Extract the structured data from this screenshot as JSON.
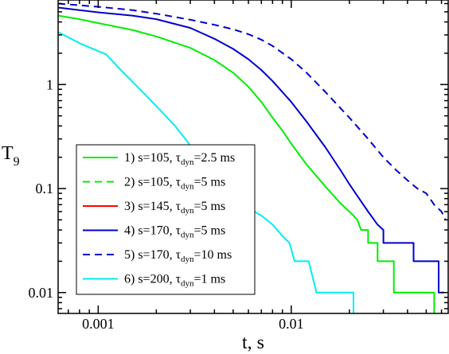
{
  "chart_data": {
    "type": "line",
    "xlabel": "t, s",
    "ylabel_main": "T",
    "ylabel_sub": "9",
    "x_scale": "log",
    "y_scale": "log",
    "xlim": [
      0.00062,
      0.065
    ],
    "ylim": [
      0.0063,
      6.5
    ],
    "x_ticks": [
      {
        "value": 0.001,
        "label": "0.001"
      },
      {
        "value": 0.01,
        "label": "0.01"
      }
    ],
    "y_ticks": [
      {
        "value": 0.01,
        "label": "0.01"
      },
      {
        "value": 0.1,
        "label": "0.1"
      },
      {
        "value": 1,
        "label": "1"
      }
    ],
    "legend_position": "lower-left",
    "grid": false,
    "series": [
      {
        "name": {
          "pre": "1) s=105, ",
          "tau": "τ",
          "sub": "dyn",
          "post": "=2.5 ms"
        },
        "color": "#00ee00",
        "dash": "solid",
        "points": [
          [
            0.00062,
            4.6
          ],
          [
            0.0008,
            4.25
          ],
          [
            0.001,
            3.9
          ],
          [
            0.0015,
            3.35
          ],
          [
            0.002,
            2.9
          ],
          [
            0.003,
            2.25
          ],
          [
            0.004,
            1.72
          ],
          [
            0.005,
            1.3
          ],
          [
            0.006,
            0.95
          ],
          [
            0.007,
            0.68
          ],
          [
            0.008,
            0.48
          ],
          [
            0.009,
            0.36
          ],
          [
            0.01,
            0.27
          ],
          [
            0.012,
            0.17
          ],
          [
            0.015,
            0.105
          ],
          [
            0.018,
            0.072
          ],
          [
            0.021,
            0.055
          ],
          [
            0.022,
            0.05
          ],
          [
            0.023,
            0.04
          ],
          [
            0.025,
            0.04
          ],
          [
            0.025,
            0.03
          ],
          [
            0.028,
            0.03
          ],
          [
            0.028,
            0.02
          ],
          [
            0.034,
            0.02
          ],
          [
            0.034,
            0.01
          ],
          [
            0.055,
            0.01
          ],
          [
            0.055,
            0.0063
          ]
        ]
      },
      {
        "name": {
          "pre": "2) s=105, ",
          "tau": "τ",
          "sub": "dyn",
          "post": "=5 ms"
        },
        "color": "#00ee00",
        "dash": "dashed",
        "points": []
      },
      {
        "name": {
          "pre": "3) s=145, ",
          "tau": "τ",
          "sub": "dyn",
          "post": "=5 ms"
        },
        "color": "#ff0000",
        "dash": "solid",
        "points": []
      },
      {
        "name": {
          "pre": "4) s=170, ",
          "tau": "τ",
          "sub": "dyn",
          "post": "=5 ms"
        },
        "color": "#0000cc",
        "dash": "solid",
        "points": [
          [
            0.00062,
            5.5
          ],
          [
            0.0008,
            5.2
          ],
          [
            0.001,
            4.95
          ],
          [
            0.0015,
            4.6
          ],
          [
            0.002,
            4.25
          ],
          [
            0.003,
            3.5
          ],
          [
            0.004,
            2.75
          ],
          [
            0.005,
            2.2
          ],
          [
            0.006,
            1.75
          ],
          [
            0.007,
            1.38
          ],
          [
            0.008,
            1.08
          ],
          [
            0.01,
            0.68
          ],
          [
            0.012,
            0.44
          ],
          [
            0.015,
            0.25
          ],
          [
            0.018,
            0.15
          ],
          [
            0.02,
            0.11
          ],
          [
            0.022,
            0.085
          ],
          [
            0.025,
            0.06
          ],
          [
            0.028,
            0.045
          ],
          [
            0.03,
            0.04
          ],
          [
            0.03,
            0.03
          ],
          [
            0.04,
            0.03
          ],
          [
            0.043,
            0.03
          ],
          [
            0.043,
            0.02
          ],
          [
            0.05,
            0.02
          ],
          [
            0.058,
            0.02
          ],
          [
            0.058,
            0.01
          ],
          [
            0.062,
            0.01
          ]
        ]
      },
      {
        "name": {
          "pre": "5) s=170, ",
          "tau": "τ",
          "sub": "dyn",
          "post": "=10 ms"
        },
        "color": "#0000cc",
        "dash": "dashed",
        "points": [
          [
            0.00062,
            6.0
          ],
          [
            0.001,
            5.6
          ],
          [
            0.0015,
            5.2
          ],
          [
            0.002,
            4.8
          ],
          [
            0.003,
            4.2
          ],
          [
            0.004,
            3.75
          ],
          [
            0.005,
            3.4
          ],
          [
            0.006,
            3.05
          ],
          [
            0.007,
            2.7
          ],
          [
            0.008,
            2.35
          ],
          [
            0.01,
            1.75
          ],
          [
            0.012,
            1.3
          ],
          [
            0.015,
            0.85
          ],
          [
            0.02,
            0.48
          ],
          [
            0.025,
            0.3
          ],
          [
            0.03,
            0.2
          ],
          [
            0.035,
            0.15
          ],
          [
            0.04,
            0.12
          ],
          [
            0.045,
            0.1
          ],
          [
            0.05,
            0.09
          ],
          [
            0.055,
            0.07
          ],
          [
            0.06,
            0.06
          ],
          [
            0.063,
            0.05
          ]
        ]
      },
      {
        "name": {
          "pre": "6) s=200, ",
          "tau": "τ",
          "sub": "dyn",
          "post": "=1 ms"
        },
        "color": "#00eeee",
        "dash": "solid",
        "points": [
          [
            0.00062,
            3.2
          ],
          [
            0.0008,
            2.5
          ],
          [
            0.001,
            2.1
          ],
          [
            0.0011,
            1.95
          ],
          [
            0.0013,
            1.4
          ],
          [
            0.0016,
            0.95
          ],
          [
            0.002,
            0.62
          ],
          [
            0.0025,
            0.4
          ],
          [
            0.003,
            0.26
          ],
          [
            0.0035,
            0.19
          ],
          [
            0.004,
            0.14
          ],
          [
            0.005,
            0.09
          ],
          [
            0.006,
            0.065
          ],
          [
            0.007,
            0.055
          ],
          [
            0.008,
            0.045
          ],
          [
            0.009,
            0.035
          ],
          [
            0.0098,
            0.03
          ],
          [
            0.0104,
            0.02
          ],
          [
            0.0123,
            0.02
          ],
          [
            0.0135,
            0.01
          ],
          [
            0.021,
            0.01
          ],
          [
            0.021,
            0.0063
          ]
        ]
      }
    ]
  }
}
